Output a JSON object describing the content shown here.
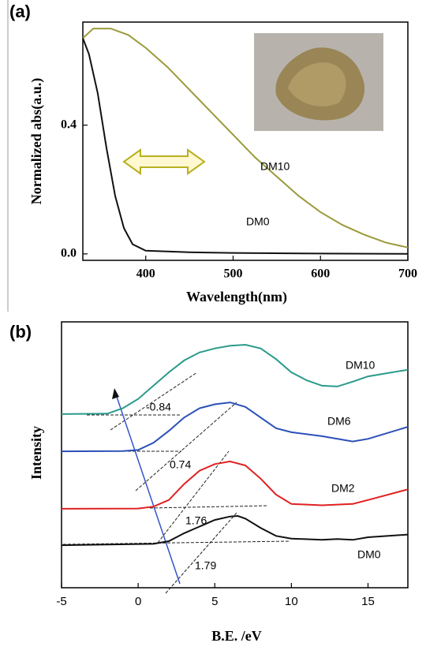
{
  "chart_data": [
    {
      "type": "line",
      "panel_label": "(a)",
      "xlabel": "Wavelength(nm)",
      "ylabel": "Normalized abs(a.u.)",
      "xlim": [
        328,
        700
      ],
      "ylim": [
        -0.02,
        0.72
      ],
      "xticks": [
        400,
        500,
        600,
        700
      ],
      "yticks": [
        {
          "value": 0,
          "label": "0.0"
        },
        0.4
      ],
      "series": [
        {
          "name": "DM10",
          "color": "#9a9a3a",
          "x": [
            328,
            340,
            360,
            380,
            400,
            425,
            450,
            475,
            500,
            525,
            550,
            575,
            600,
            625,
            650,
            675,
            700
          ],
          "values": [
            0.67,
            0.7,
            0.7,
            0.68,
            0.64,
            0.58,
            0.51,
            0.44,
            0.37,
            0.3,
            0.24,
            0.18,
            0.13,
            0.09,
            0.06,
            0.035,
            0.02
          ]
        },
        {
          "name": "DM0",
          "color": "#111111",
          "x": [
            328,
            335,
            345,
            355,
            365,
            375,
            385,
            400,
            450,
            500,
            600,
            700
          ],
          "values": [
            0.67,
            0.62,
            0.5,
            0.33,
            0.18,
            0.08,
            0.03,
            0.01,
            0.005,
            0.003,
            0.001,
            0
          ]
        }
      ]
    },
    {
      "type": "line",
      "panel_label": "(b)",
      "xlabel": "B.E.  /eV",
      "ylabel": "Intensity",
      "xlim": [
        -5,
        17.6
      ],
      "ylim": [
        0,
        10
      ],
      "xticks": [
        -5,
        0,
        5,
        10,
        15
      ],
      "annotations": [
        "-0.84",
        "0.74",
        "1.76",
        "1.79"
      ],
      "series": [
        {
          "name": "DM10",
          "color": "#2a9a8a",
          "x": [
            -5,
            -2,
            -1,
            0,
            1,
            2,
            3,
            4,
            5,
            6,
            7,
            8,
            9,
            10,
            11,
            12,
            13,
            14,
            15,
            17.6
          ],
          "values": [
            6.53,
            6.55,
            6.75,
            7.1,
            7.6,
            8.1,
            8.55,
            8.85,
            9.0,
            9.1,
            9.14,
            9.0,
            8.6,
            8.1,
            7.8,
            7.6,
            7.57,
            7.75,
            7.95,
            8.2
          ]
        },
        {
          "name": "DM6",
          "color": "#2a50b8",
          "x": [
            -5,
            -1,
            0,
            1,
            2,
            3,
            4,
            5,
            6,
            7,
            8,
            9,
            10,
            12,
            14,
            15,
            17.6
          ],
          "values": [
            5.13,
            5.14,
            5.18,
            5.45,
            5.9,
            6.4,
            6.75,
            6.9,
            6.97,
            6.8,
            6.4,
            6.0,
            5.85,
            5.7,
            5.5,
            5.6,
            6.05
          ]
        },
        {
          "name": "DM2",
          "color": "#e02020",
          "x": [
            -5,
            0,
            1,
            2,
            3,
            4,
            5,
            6,
            7,
            8,
            9,
            10,
            12,
            14,
            15,
            17.6
          ],
          "values": [
            2.97,
            2.98,
            3.05,
            3.3,
            3.9,
            4.4,
            4.65,
            4.75,
            4.6,
            4.1,
            3.5,
            3.15,
            3.1,
            3.15,
            3.3,
            3.7
          ]
        },
        {
          "name": "DM0",
          "color": "#111111",
          "x": [
            -5,
            1,
            2,
            3,
            4,
            5,
            6,
            6.5,
            7,
            8,
            9,
            10,
            12,
            13,
            14,
            15,
            17.6
          ],
          "values": [
            1.6,
            1.65,
            1.75,
            2.05,
            2.3,
            2.55,
            2.68,
            2.7,
            2.6,
            2.25,
            1.95,
            1.85,
            1.8,
            1.83,
            1.8,
            1.9,
            2.0
          ]
        }
      ]
    }
  ]
}
